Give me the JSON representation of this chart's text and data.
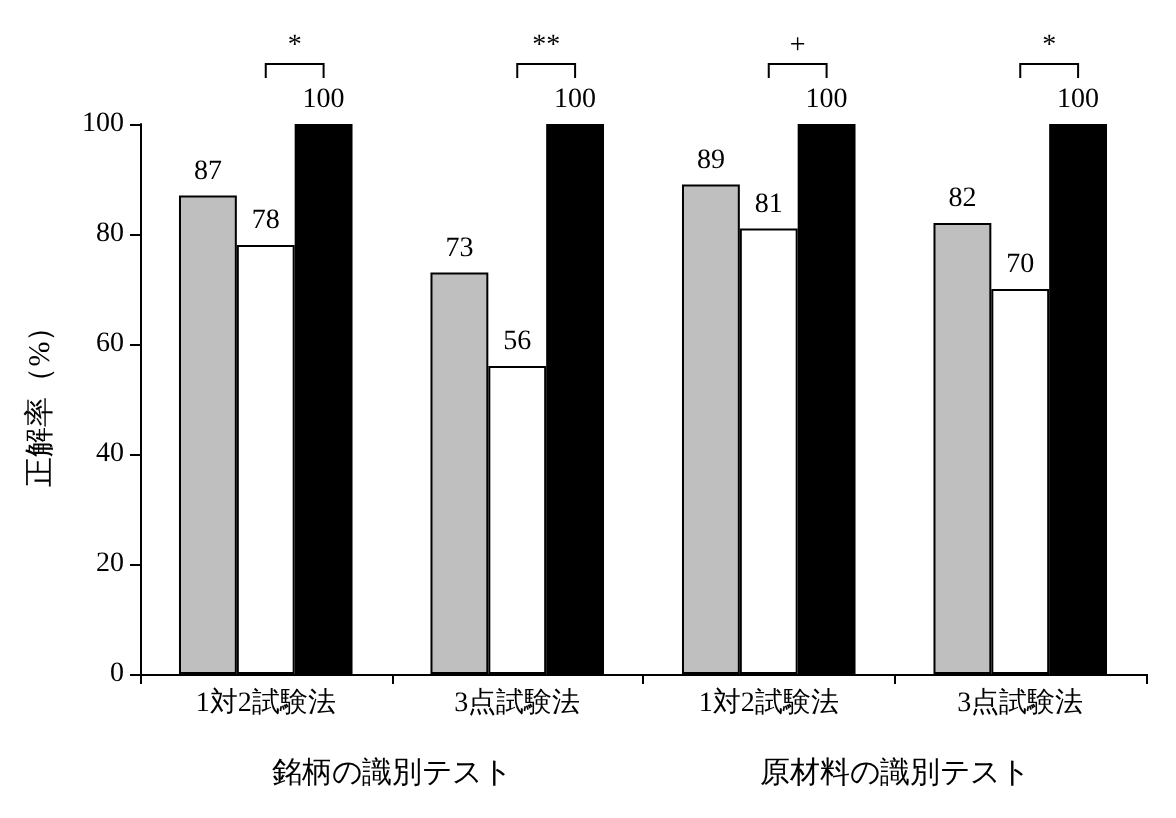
{
  "chart_data": {
    "type": "bar",
    "ylabel": "正解率（%）",
    "categories": [
      "1対2試験法",
      "3点試験法",
      "1対2試験法",
      "3点試験法"
    ],
    "series": [
      {
        "color": "#bfbfbf",
        "values": [
          87,
          73,
          89,
          82
        ]
      },
      {
        "color": "#ffffff",
        "values": [
          78,
          56,
          81,
          70
        ]
      },
      {
        "color": "#000000",
        "values": [
          100,
          100,
          100,
          100
        ]
      }
    ],
    "ylim": [
      0,
      100
    ],
    "yticks": [
      0,
      20,
      40,
      60,
      80,
      100
    ],
    "grid": false,
    "data_labels": true,
    "annotations": [
      "*",
      "**",
      "+",
      "*",
      "銘柄の識別テスト",
      "原材料の識別テスト"
    ]
  }
}
